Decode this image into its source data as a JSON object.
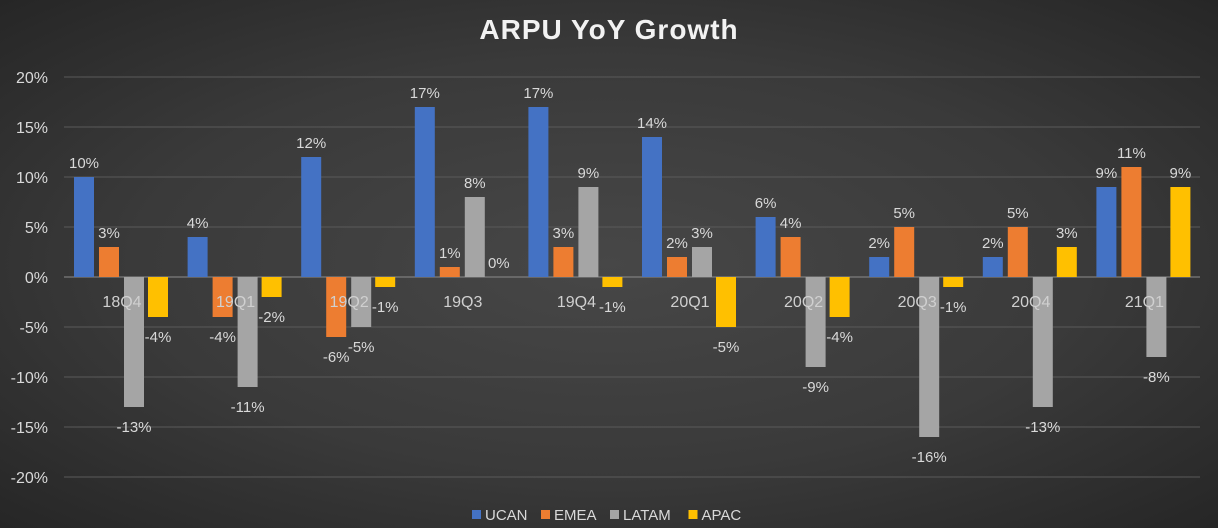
{
  "chart_data": {
    "type": "bar",
    "title": "ARPU YoY Growth",
    "categories": [
      "18Q4",
      "19Q1",
      "19Q2",
      "19Q3",
      "19Q4",
      "20Q1",
      "20Q2",
      "20Q3",
      "20Q4",
      "21Q1"
    ],
    "series": [
      {
        "name": "UCAN",
        "color": "#4472C4",
        "values": [
          10,
          4,
          12,
          17,
          17,
          14,
          6,
          2,
          2,
          9
        ]
      },
      {
        "name": "EMEA",
        "color": "#ED7D31",
        "values": [
          3,
          -4,
          -6,
          1,
          3,
          2,
          4,
          5,
          5,
          11
        ]
      },
      {
        "name": "LATAM",
        "color": "#A5A5A5",
        "values": [
          -13,
          -11,
          -5,
          8,
          9,
          3,
          -9,
          -16,
          -13,
          -8
        ]
      },
      {
        "name": "APAC",
        "color": "#FFC000",
        "values": [
          -4,
          -2,
          -1,
          0,
          -1,
          -5,
          -4,
          -1,
          3,
          9
        ]
      }
    ],
    "ylim": [
      -20,
      20
    ],
    "yticks": [
      20,
      15,
      10,
      5,
      0,
      -5,
      -10,
      -15,
      -20
    ],
    "ytick_labels": [
      "20%",
      "15%",
      "10%",
      "5%",
      "0%",
      "-5%",
      "-10%",
      "-15%",
      "-20%"
    ],
    "value_suffix": "%",
    "grid": true,
    "legend": "bottom",
    "xlabel": "",
    "ylabel": ""
  }
}
